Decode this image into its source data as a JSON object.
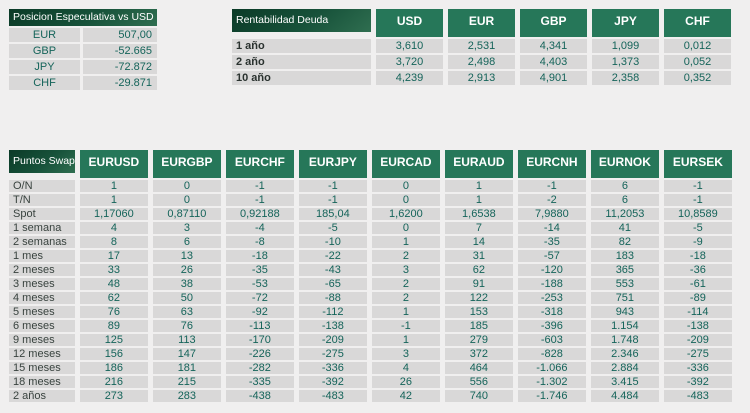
{
  "page": {
    "background": "#f0efef"
  },
  "colors": {
    "header_dark_start": "#0b3a27",
    "header_dark_end": "#2f6e50",
    "header_green": "#267759",
    "cell_gray": "#d9d8d8",
    "value_text": "#15645a",
    "header_text": "#ffffff"
  },
  "speculative_position": {
    "title": "Posicion Especulativa vs USD",
    "rows": [
      {
        "label": "EUR",
        "value": "507,00"
      },
      {
        "label": "GBP",
        "value": "-52.665"
      },
      {
        "label": "JPY",
        "value": "-72.872"
      },
      {
        "label": "CHF",
        "value": "-29.871"
      }
    ]
  },
  "debt_yield": {
    "title": "Rentabilidad Deuda",
    "columns": [
      "USD",
      "EUR",
      "GBP",
      "JPY",
      "CHF"
    ],
    "rows": [
      {
        "label": "1 año",
        "values": [
          "3,610",
          "2,531",
          "4,341",
          "1,099",
          "0,012"
        ]
      },
      {
        "label": "2 año",
        "values": [
          "3,720",
          "2,498",
          "4,403",
          "1,373",
          "0,052"
        ]
      },
      {
        "label": "10 año",
        "values": [
          "4,239",
          "2,913",
          "4,901",
          "2,358",
          "0,352"
        ]
      }
    ]
  },
  "swap_points": {
    "title": "Puntos Swap",
    "columns": [
      "EURUSD",
      "EURGBP",
      "EURCHF",
      "EURJPY",
      "EURCAD",
      "EURAUD",
      "EURCNH",
      "EURNOK",
      "EURSEK"
    ],
    "rows": [
      {
        "label": "O/N",
        "values": [
          "1",
          "0",
          "-1",
          "-1",
          "0",
          "1",
          "-1",
          "6",
          "-1"
        ]
      },
      {
        "label": "T/N",
        "values": [
          "1",
          "0",
          "-1",
          "-1",
          "0",
          "1",
          "-2",
          "6",
          "-1"
        ]
      },
      {
        "label": "Spot",
        "values": [
          "1,17060",
          "0,87110",
          "0,92188",
          "185,04",
          "1,6200",
          "1,6538",
          "7,9880",
          "11,2053",
          "10,8589"
        ]
      },
      {
        "label": "1 semana",
        "values": [
          "4",
          "3",
          "-4",
          "-5",
          "0",
          "7",
          "-14",
          "41",
          "-5"
        ]
      },
      {
        "label": "2 semanas",
        "values": [
          "8",
          "6",
          "-8",
          "-10",
          "1",
          "14",
          "-35",
          "82",
          "-9"
        ]
      },
      {
        "label": "1 mes",
        "values": [
          "17",
          "13",
          "-18",
          "-22",
          "2",
          "31",
          "-57",
          "183",
          "-18"
        ]
      },
      {
        "label": "2 meses",
        "values": [
          "33",
          "26",
          "-35",
          "-43",
          "3",
          "62",
          "-120",
          "365",
          "-36"
        ]
      },
      {
        "label": "3 meses",
        "values": [
          "48",
          "38",
          "-53",
          "-65",
          "2",
          "91",
          "-188",
          "553",
          "-61"
        ]
      },
      {
        "label": "4 meses",
        "values": [
          "62",
          "50",
          "-72",
          "-88",
          "2",
          "122",
          "-253",
          "751",
          "-89"
        ]
      },
      {
        "label": "5 meses",
        "values": [
          "76",
          "63",
          "-92",
          "-112",
          "1",
          "153",
          "-318",
          "943",
          "-114"
        ]
      },
      {
        "label": "6 meses",
        "values": [
          "89",
          "76",
          "-113",
          "-138",
          "-1",
          "185",
          "-396",
          "1.154",
          "-138"
        ]
      },
      {
        "label": "9 meses",
        "values": [
          "125",
          "113",
          "-170",
          "-209",
          "1",
          "279",
          "-603",
          "1.748",
          "-209"
        ]
      },
      {
        "label": "12 meses",
        "values": [
          "156",
          "147",
          "-226",
          "-275",
          "3",
          "372",
          "-828",
          "2.346",
          "-275"
        ]
      },
      {
        "label": "15 meses",
        "values": [
          "186",
          "181",
          "-282",
          "-336",
          "4",
          "464",
          "-1.066",
          "2.884",
          "-336"
        ]
      },
      {
        "label": "18 meses",
        "values": [
          "216",
          "215",
          "-335",
          "-392",
          "26",
          "556",
          "-1.302",
          "3.415",
          "-392"
        ]
      },
      {
        "label": "2 años",
        "values": [
          "273",
          "283",
          "-438",
          "-483",
          "42",
          "740",
          "-1.746",
          "4.484",
          "-483"
        ]
      }
    ]
  }
}
